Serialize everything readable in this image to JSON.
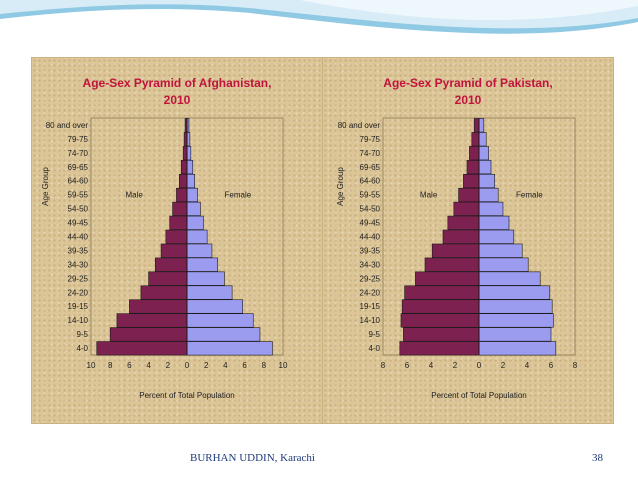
{
  "footer": {
    "author": "BURHAN UDDIN, Karachi",
    "page_number": "38"
  },
  "colors": {
    "male": "#7d2150",
    "female": "#9b9bef",
    "title": "#c0143c"
  },
  "chart_data": [
    {
      "type": "bar",
      "orientation": "horizontal-population-pyramid",
      "title_line1": "Age-Sex Pyramid of Afghanistan,",
      "title_line2": "2010",
      "xlabel": "Percent of Total Population",
      "ylabel": "Age Group",
      "xlim": [
        -10,
        10
      ],
      "xticks": [
        "10",
        "8",
        "6",
        "4",
        "2",
        "0",
        "2",
        "4",
        "6",
        "8",
        "10"
      ],
      "male_label": "Male",
      "female_label": "Female",
      "categories": [
        "80 and over",
        "79-75",
        "74-70",
        "69-65",
        "64-60",
        "59-55",
        "54-50",
        "49-45",
        "44-40",
        "39-35",
        "34-30",
        "29-25",
        "24-20",
        "19-15",
        "14-10",
        "9-5",
        "4-0"
      ],
      "series": [
        {
          "name": "Male",
          "values": [
            0.2,
            0.3,
            0.4,
            0.6,
            0.8,
            1.1,
            1.5,
            1.8,
            2.2,
            2.7,
            3.3,
            4.0,
            4.8,
            6.0,
            7.3,
            8.0,
            9.4
          ]
        },
        {
          "name": "Female",
          "values": [
            0.2,
            0.3,
            0.4,
            0.6,
            0.8,
            1.1,
            1.4,
            1.7,
            2.1,
            2.6,
            3.2,
            3.9,
            4.7,
            5.8,
            6.9,
            7.6,
            8.9
          ]
        }
      ]
    },
    {
      "type": "bar",
      "orientation": "horizontal-population-pyramid",
      "title_line1": "Age-Sex Pyramid of Pakistan,",
      "title_line2": "2010",
      "xlabel": "Percent of Total Population",
      "ylabel": "Age Group",
      "xlim": [
        -8,
        8
      ],
      "xticks": [
        "8",
        "6",
        "4",
        "2",
        "0",
        "2",
        "4",
        "6",
        "8"
      ],
      "male_label": "Male",
      "female_label": "Female",
      "categories": [
        "80 and over",
        "79-75",
        "74-70",
        "69-65",
        "64-60",
        "59-55",
        "54-50",
        "49-45",
        "44-40",
        "39-35",
        "34-30",
        "29-25",
        "24-20",
        "19-15",
        "14-10",
        "9-5",
        "4-0"
      ],
      "series": [
        {
          "name": "Male",
          "values": [
            0.4,
            0.6,
            0.8,
            1.0,
            1.3,
            1.7,
            2.1,
            2.6,
            3.0,
            3.9,
            4.5,
            5.3,
            6.2,
            6.4,
            6.5,
            6.3,
            6.6
          ]
        },
        {
          "name": "Female",
          "values": [
            0.4,
            0.6,
            0.8,
            1.0,
            1.3,
            1.6,
            2.0,
            2.5,
            2.9,
            3.6,
            4.1,
            5.1,
            5.9,
            6.1,
            6.2,
            6.0,
            6.4
          ]
        }
      ]
    }
  ]
}
